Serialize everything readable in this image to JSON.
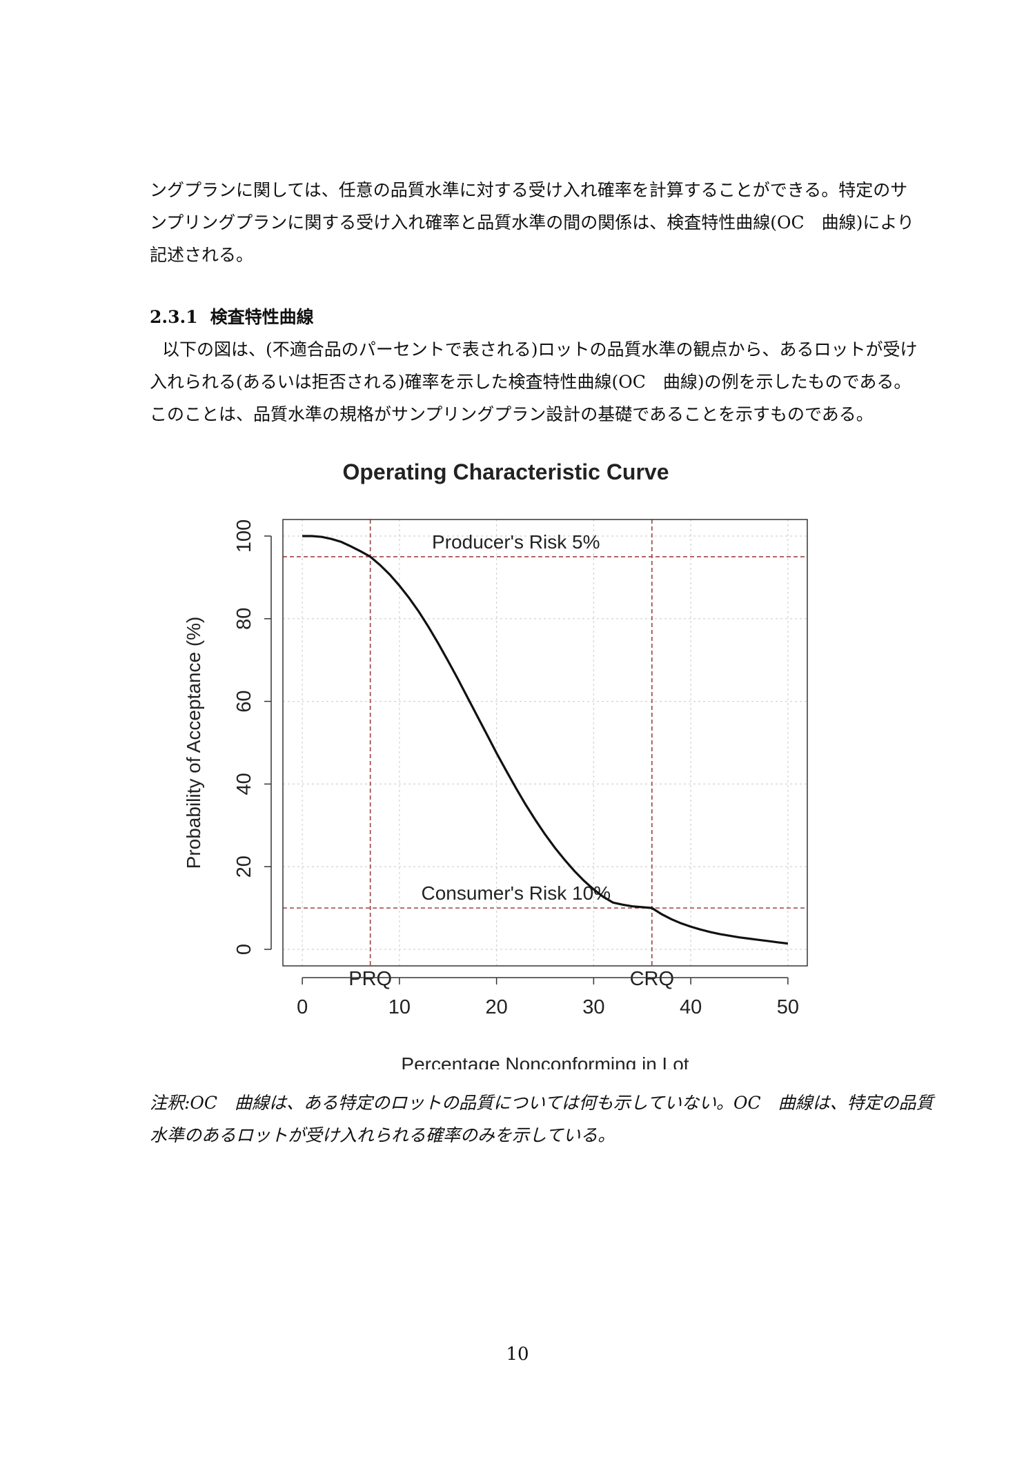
{
  "body": {
    "intro_lines": [
      "ングプランに関しては、任意の品質水準に対する受け入れ確率を計算することができる。特定のサ",
      "ンプリングプランに関する受け入れ確率と品質水準の間の関係は、検査特性曲線(OC　曲線)により",
      "記述される。"
    ],
    "section_number": "2.3.1",
    "section_title": "検査特性曲線",
    "section_lines": [
      "以下の図は、(不適合品のパーセントで表される)ロットの品質水準の観点から、あるロットが受け",
      "入れられる(あるいは拒否される)確率を示した検査特性曲線(OC　曲線)の例を示したものである。",
      "このことは、品質水準の規格がサンプリングプラン設計の基礎であることを示すものである。"
    ],
    "note_lines": [
      "注釈:OC　曲線は、ある特定のロットの品質については何も示していない。OC　曲線は、特定の品質",
      "水準のあるロットが受け入れられる確率のみを示している。"
    ],
    "page_number": "10"
  },
  "chart_data": {
    "type": "line",
    "title": "Operating Characteristic Curve",
    "xlabel": "Percentage Nonconforming in Lot",
    "ylabel": "Probability of Acceptance (%)",
    "xlim": [
      -2,
      52
    ],
    "ylim": [
      -4,
      104
    ],
    "x_ticks": [
      "0",
      "10",
      "20",
      "30",
      "40",
      "50"
    ],
    "y_ticks": [
      "0",
      "20",
      "40",
      "60",
      "80",
      "100"
    ],
    "grid": true,
    "series": [
      {
        "x": [
          0,
          1,
          2,
          3,
          4,
          5,
          6,
          7,
          8,
          9,
          10,
          11,
          12,
          13,
          14,
          15,
          16,
          17,
          18,
          19,
          20,
          21,
          22,
          23,
          24,
          25,
          26,
          27,
          28,
          29,
          30,
          31,
          32,
          33,
          34,
          35,
          36,
          37,
          38,
          39,
          40,
          41,
          42,
          43,
          44,
          45,
          46,
          47,
          48,
          49,
          50
        ],
        "y": [
          100,
          100,
          99.8,
          99.3,
          98.6,
          97.5,
          96.3,
          95,
          93,
          90.7,
          88,
          85,
          81.7,
          78,
          74,
          69.8,
          65.5,
          61,
          56.5,
          52,
          47.5,
          43.2,
          39,
          35,
          31.3,
          27.8,
          24.6,
          21.7,
          19,
          16.6,
          14.5,
          12.7,
          11.3,
          10.8,
          10.4,
          10.2,
          10,
          8.5,
          7.3,
          6.3,
          5.5,
          4.8,
          4.2,
          3.7,
          3.3,
          2.9,
          2.6,
          2.3,
          2,
          1.7,
          1.4
        ]
      }
    ],
    "reference_lines": {
      "horizontal": [
        {
          "y": 95,
          "label": "Producer's Risk 5%"
        },
        {
          "y": 10,
          "label": "Consumer's Risk 10%"
        }
      ],
      "vertical": [
        {
          "x": 7,
          "label": "PRQ"
        },
        {
          "x": 36,
          "label": "CRQ"
        }
      ],
      "color": "#a04040"
    },
    "line_color": "#111111"
  }
}
